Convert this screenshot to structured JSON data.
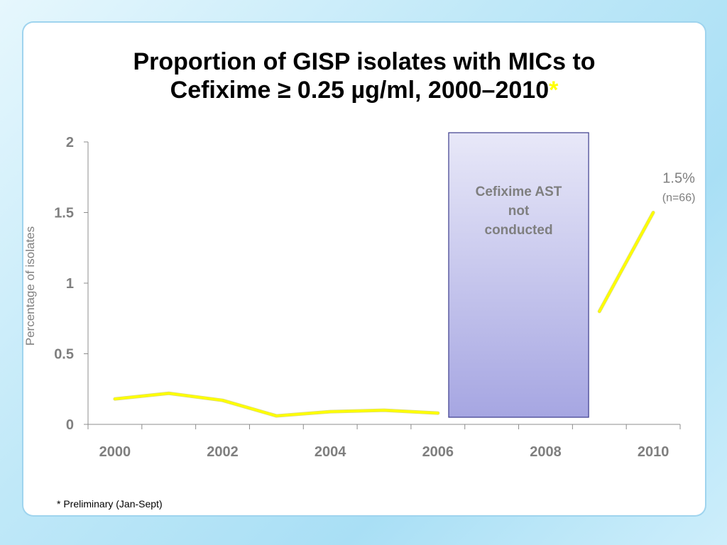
{
  "title": {
    "line1": "Proportion of GISP isolates with MICs to",
    "line2": "Cefixime ≥ 0.25 µg/ml, 2000–2010",
    "star": "*"
  },
  "footnote": "* Preliminary (Jan-Sept)",
  "colors": {
    "line": "#ffff00",
    "box_fill_top": "#e8e8f8",
    "box_fill_bottom": "#a6a6e2",
    "box_border": "#3c3c8c"
  },
  "chart_data": {
    "type": "line",
    "ylabel": "Percentage of isolates",
    "xlabel": "",
    "ylim": [
      0,
      2
    ],
    "y_ticks": [
      "0",
      "0.5",
      "1",
      "1.5",
      "2"
    ],
    "x_tick_labels": [
      "2000",
      "2002",
      "2004",
      "2006",
      "2008",
      "2010"
    ],
    "grid": false,
    "series": [
      {
        "points": [
          {
            "x": 2000,
            "y": 0.18
          },
          {
            "x": 2001,
            "y": 0.22
          },
          {
            "x": 2002,
            "y": 0.17
          },
          {
            "x": 2003,
            "y": 0.06
          },
          {
            "x": 2004,
            "y": 0.09
          },
          {
            "x": 2005,
            "y": 0.1
          },
          {
            "x": 2006,
            "y": 0.08
          }
        ]
      },
      {
        "points": [
          {
            "x": 2009,
            "y": 0.8
          },
          {
            "x": 2010,
            "y": 1.5
          }
        ]
      }
    ],
    "shaded_region": {
      "x_from": 2006.2,
      "x_to": 2008.8,
      "label_lines": [
        "Cefixime AST",
        "not",
        "conducted"
      ]
    },
    "annotation": {
      "x": 2010,
      "y": 1.5,
      "value": "1.5%",
      "note": "(n=66)"
    }
  }
}
